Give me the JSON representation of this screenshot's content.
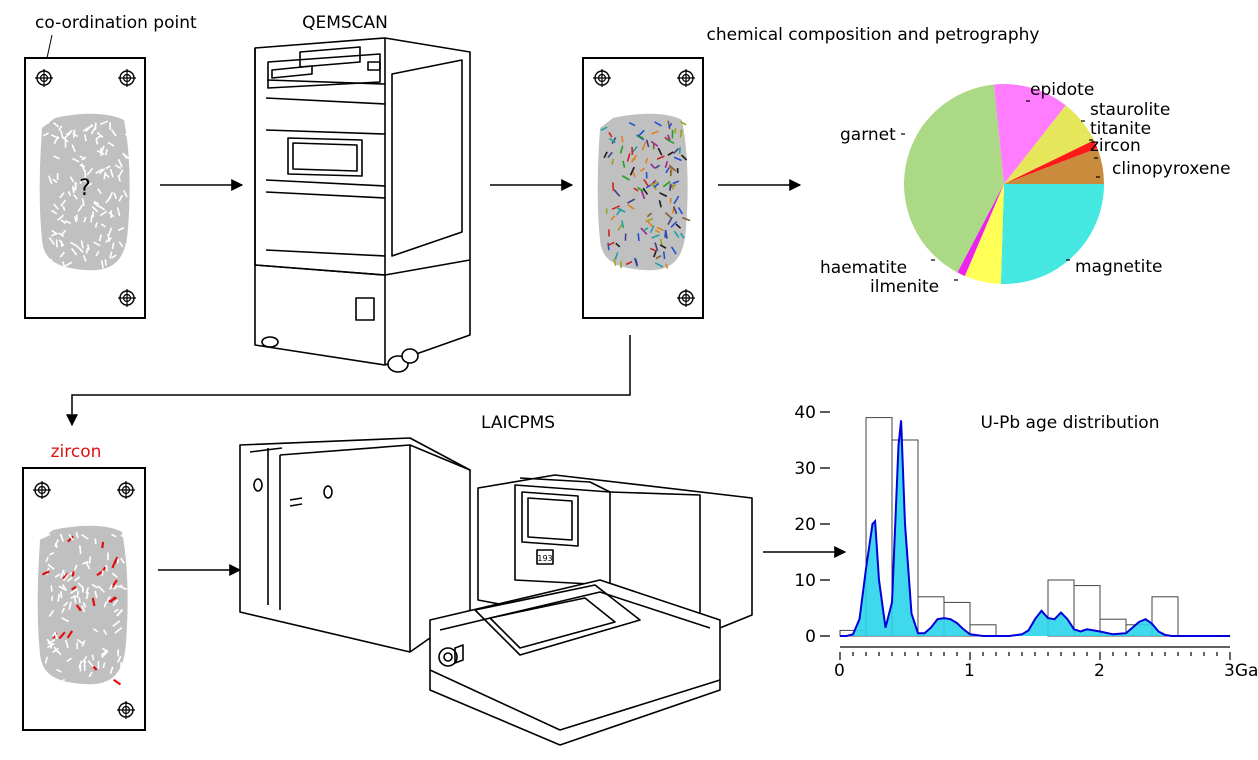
{
  "labels": {
    "coordination_point": "co-ordination point",
    "qemscan": "QEMSCAN",
    "chem_title": "chemical composition and petrography",
    "question_mark": "?",
    "zircon_heading": "zircon",
    "laicpms": "LAICPMS",
    "instrument_display": "193"
  },
  "colors": {
    "grain_patch": "#c0c0c0",
    "zircon_red": "#e01010",
    "kde_line": "#0000dd",
    "kde_fill": "#2ad4ea"
  },
  "chart_data": [
    {
      "type": "pie",
      "title": "chemical composition and petrography",
      "slices": [
        {
          "label": "garnet",
          "value": 40.7,
          "color": "#acd985"
        },
        {
          "label": "epidote",
          "value": 12.2,
          "color": "#ff7cff"
        },
        {
          "label": "staurolite",
          "value": 5.8,
          "color": "#e6e65a"
        },
        {
          "label": "titanite",
          "value": 1.4,
          "color": "#e6e65a"
        },
        {
          "label": "zircon",
          "value": 1.4,
          "color": "#ff1a1a"
        },
        {
          "label": "clinopyroxene",
          "value": 5.8,
          "color": "#c98c3c"
        },
        {
          "label": "magnetite",
          "value": 25.5,
          "color": "#44e8e0"
        },
        {
          "label": "ilmenite",
          "value": 5.9,
          "color": "#ffff55"
        },
        {
          "label": "haematite",
          "value": 1.3,
          "color": "#ee22ee"
        }
      ]
    },
    {
      "type": "bar",
      "title": "U-Pb age distribution",
      "xlabel": "",
      "ylabel": "",
      "x_unit": "Ga",
      "xlim": [
        0,
        3
      ],
      "ylim": [
        0,
        40
      ],
      "y_ticks": [
        0,
        10,
        20,
        30,
        40
      ],
      "x_ticks": [
        0,
        1,
        2,
        3
      ],
      "x_tick_labels": [
        "0",
        "1",
        "2",
        "3Ga"
      ],
      "histogram": {
        "bin_edges": [
          0,
          0.2,
          0.4,
          0.6,
          0.8,
          1.0,
          1.2,
          1.4,
          1.6,
          1.8,
          2.0,
          2.2,
          2.4,
          2.6
        ],
        "counts": [
          1,
          39,
          35,
          7,
          6,
          2,
          0,
          0,
          10,
          9,
          3,
          2,
          7
        ]
      },
      "kde": {
        "x": [
          0,
          0.05,
          0.1,
          0.15,
          0.2,
          0.25,
          0.27,
          0.3,
          0.35,
          0.4,
          0.45,
          0.47,
          0.5,
          0.55,
          0.6,
          0.65,
          0.7,
          0.75,
          0.8,
          0.85,
          0.9,
          0.95,
          1.0,
          1.1,
          1.2,
          1.3,
          1.4,
          1.45,
          1.5,
          1.55,
          1.6,
          1.65,
          1.7,
          1.75,
          1.8,
          1.85,
          1.9,
          1.95,
          2.0,
          2.1,
          2.2,
          2.25,
          2.3,
          2.35,
          2.4,
          2.45,
          2.5,
          2.55,
          2.6,
          2.65,
          2.7,
          2.8,
          2.9,
          3.0
        ],
        "y": [
          0,
          0,
          0.3,
          3,
          12,
          20,
          20.5,
          10,
          1.5,
          6,
          34,
          38.5,
          20,
          4,
          0.5,
          0.5,
          1.5,
          3,
          3.2,
          3,
          2.3,
          1.2,
          0.3,
          0,
          0,
          0,
          0.3,
          1,
          3,
          4.5,
          3.2,
          3,
          4.2,
          3,
          1.2,
          0.8,
          1.2,
          1,
          0.8,
          0.3,
          0.5,
          1.5,
          2.5,
          3,
          2.2,
          0.8,
          0.2,
          0,
          0,
          0,
          0,
          0,
          0,
          0
        ]
      }
    }
  ]
}
